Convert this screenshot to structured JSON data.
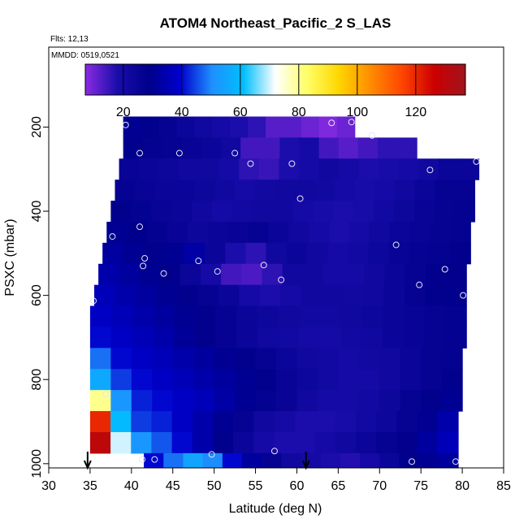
{
  "chart_data": {
    "type": "heatmap",
    "title": "ATOM4 Northeast_Pacific_2 S_LAS",
    "annotations": [
      "Flts: 12,13",
      "MMDD: 0519,0521"
    ],
    "xlabel": "Latitude (deg N)",
    "ylabel": "PSXC (mbar)",
    "xlim": [
      30,
      85
    ],
    "ylim": [
      1010,
      10
    ],
    "y_reversed": true,
    "x_ticks": [
      30,
      35,
      40,
      45,
      50,
      55,
      60,
      65,
      70,
      75,
      80,
      85
    ],
    "y_ticks": [
      200,
      400,
      600,
      800,
      1000
    ],
    "colorbar": {
      "range": [
        7,
        137
      ],
      "ticks": [
        20,
        40,
        60,
        80,
        100,
        120
      ],
      "colors": [
        "#8a2be2",
        "#1a0dab",
        "#00008b",
        "#0000cd",
        "#1e90ff",
        "#00bfff",
        "#ffffff",
        "#ffff66",
        "#ffd700",
        "#ff8c00",
        "#ff4500",
        "#cc0000",
        "#a0141e"
      ]
    },
    "rows": [
      {
        "p": 200,
        "lat_start": 39,
        "lat_end": 67,
        "values": [
          30,
          28,
          26,
          24,
          22,
          20,
          18,
          16,
          12,
          12,
          10,
          8,
          10
        ]
      },
      {
        "p": 250,
        "lat_start": 39,
        "lat_end": 74.5,
        "values": [
          28,
          27,
          26,
          25,
          24,
          22,
          14,
          14,
          18,
          20,
          14,
          12,
          14,
          16,
          16
        ]
      },
      {
        "p": 300,
        "lat_start": 38.5,
        "lat_end": 82,
        "values": [
          25,
          24,
          23,
          22,
          22,
          20,
          16,
          15,
          18,
          20,
          22,
          20,
          18,
          19,
          20,
          22,
          24,
          24
        ]
      },
      {
        "p": 350,
        "lat_start": 38,
        "lat_end": 81.5,
        "values": [
          26,
          25,
          24,
          24,
          23,
          22,
          20,
          21,
          22,
          22,
          21,
          20,
          19,
          20,
          22,
          24,
          26,
          26
        ]
      },
      {
        "p": 400,
        "lat_start": 37.5,
        "lat_end": 81.5,
        "values": [
          28,
          27,
          25,
          24,
          22,
          20,
          21,
          22,
          22,
          20,
          19,
          18,
          19,
          21,
          23,
          25,
          26,
          27
        ]
      },
      {
        "p": 450,
        "lat_start": 37,
        "lat_end": 81,
        "values": [
          30,
          29,
          27,
          25,
          23,
          24,
          25,
          26,
          24,
          22,
          20,
          18,
          20,
          22,
          24,
          25,
          26,
          27
        ]
      },
      {
        "p": 500,
        "lat_start": 36.5,
        "lat_end": 81,
        "values": [
          32,
          30,
          28,
          30,
          33,
          24,
          18,
          16,
          22,
          24,
          22,
          20,
          21,
          23,
          25,
          26,
          27,
          28
        ]
      },
      {
        "p": 550,
        "lat_start": 36,
        "lat_end": 80.5,
        "values": [
          34,
          32,
          30,
          28,
          24,
          20,
          14,
          13,
          16,
          22,
          22,
          20,
          20,
          22,
          24,
          26,
          28,
          28
        ]
      },
      {
        "p": 600,
        "lat_start": 35.5,
        "lat_end": 80.5,
        "values": [
          36,
          34,
          32,
          30,
          28,
          26,
          24,
          20,
          18,
          20,
          22,
          22,
          21,
          22,
          24,
          26,
          28,
          28
        ]
      },
      {
        "p": 650,
        "lat_start": 35,
        "lat_end": 80.5,
        "values": [
          38,
          36,
          34,
          32,
          30,
          28,
          26,
          24,
          23,
          22,
          21,
          21,
          22,
          23,
          24,
          25,
          26,
          27
        ]
      },
      {
        "p": 700,
        "lat_start": 35,
        "lat_end": 80.5,
        "values": [
          40,
          38,
          36,
          34,
          31,
          28,
          26,
          24,
          22,
          21,
          20,
          20,
          21,
          22,
          24,
          25,
          26,
          27
        ]
      },
      {
        "p": 750,
        "lat_start": 35,
        "lat_end": 80,
        "values": [
          48,
          40,
          38,
          36,
          34,
          32,
          30,
          28,
          26,
          24,
          22,
          21,
          20,
          21,
          22,
          24,
          26,
          27
        ]
      },
      {
        "p": 800,
        "lat_start": 35,
        "lat_end": 80,
        "values": [
          56,
          44,
          40,
          38,
          36,
          34,
          32,
          30,
          28,
          25,
          23,
          21,
          20,
          20,
          22,
          24,
          26,
          28
        ]
      },
      {
        "p": 850,
        "lat_start": 35,
        "lat_end": 80,
        "values": [
          80,
          52,
          42,
          40,
          38,
          36,
          33,
          30,
          27,
          25,
          22,
          20,
          20,
          21,
          23,
          26,
          28,
          30
        ]
      },
      {
        "p": 900,
        "lat_start": 35,
        "lat_end": 79.5,
        "values": [
          120,
          60,
          44,
          42,
          38,
          34,
          30,
          26,
          22,
          20,
          18,
          18,
          19,
          21,
          23,
          26,
          30,
          34
        ]
      },
      {
        "p": 950,
        "lat_start": 35,
        "lat_end": 79.5,
        "values": [
          130,
          70,
          52,
          46,
          40,
          34,
          28,
          24,
          20,
          18,
          18,
          20,
          22,
          24,
          26,
          28,
          32,
          36
        ]
      },
      {
        "p": 1000,
        "lat_start": 41.5,
        "lat_end": 79.5,
        "values": [
          40,
          48,
          55,
          50,
          40,
          32,
          26,
          22,
          20,
          18,
          17,
          20,
          24,
          28,
          30,
          32
        ]
      }
    ],
    "sample_points": [
      [
        39.3,
        195
      ],
      [
        41.0,
        262
      ],
      [
        45.8,
        262
      ],
      [
        52.5,
        262
      ],
      [
        54.4,
        287
      ],
      [
        59.4,
        287
      ],
      [
        60.4,
        370
      ],
      [
        64.2,
        190
      ],
      [
        66.6,
        188
      ],
      [
        69.1,
        220
      ],
      [
        76.1,
        302
      ],
      [
        81.7,
        282
      ],
      [
        37.7,
        460
      ],
      [
        41.0,
        437
      ],
      [
        41.6,
        512
      ],
      [
        41.4,
        530
      ],
      [
        43.9,
        548
      ],
      [
        48.1,
        518
      ],
      [
        50.4,
        543
      ],
      [
        56.0,
        528
      ],
      [
        58.1,
        563
      ],
      [
        72.0,
        480
      ],
      [
        74.8,
        575
      ],
      [
        77.9,
        538
      ],
      [
        80.1,
        600
      ],
      [
        35.4,
        613
      ],
      [
        36.9,
        835
      ],
      [
        41.3,
        990
      ],
      [
        42.8,
        990
      ],
      [
        49.7,
        978
      ],
      [
        57.3,
        970
      ],
      [
        73.9,
        995
      ],
      [
        79.2,
        995
      ]
    ],
    "arrows_at_lat": [
      34.7,
      61.1
    ]
  }
}
